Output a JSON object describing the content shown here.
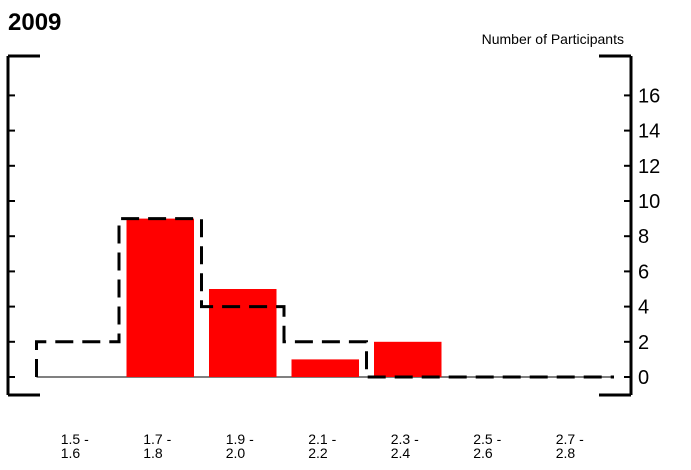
{
  "chart_data": {
    "type": "bar",
    "title": "2009",
    "ylabel": "Number of Participants",
    "xlabel": "",
    "ylim": [
      0,
      17
    ],
    "yticks": [
      0,
      2,
      4,
      6,
      8,
      10,
      12,
      14,
      16
    ],
    "y_axis_side": "right",
    "grid": false,
    "categories": [
      {
        "line1": "1.5 -",
        "line2": "1.6"
      },
      {
        "line1": "1.7 -",
        "line2": "1.8"
      },
      {
        "line1": "1.9 -",
        "line2": "2.0"
      },
      {
        "line1": "2.1 -",
        "line2": "2.2"
      },
      {
        "line1": "2.3 -",
        "line2": "2.4"
      },
      {
        "line1": "2.5 -",
        "line2": "2.6"
      },
      {
        "line1": "2.7 -",
        "line2": "2.8"
      }
    ],
    "series": [
      {
        "style": "bar",
        "color": "#ff0000",
        "values": [
          0,
          9,
          5,
          1,
          2,
          0,
          0
        ]
      },
      {
        "style": "dashed-step",
        "color": "#000000",
        "values": [
          2,
          9,
          4,
          2,
          0,
          0,
          0
        ]
      }
    ]
  }
}
